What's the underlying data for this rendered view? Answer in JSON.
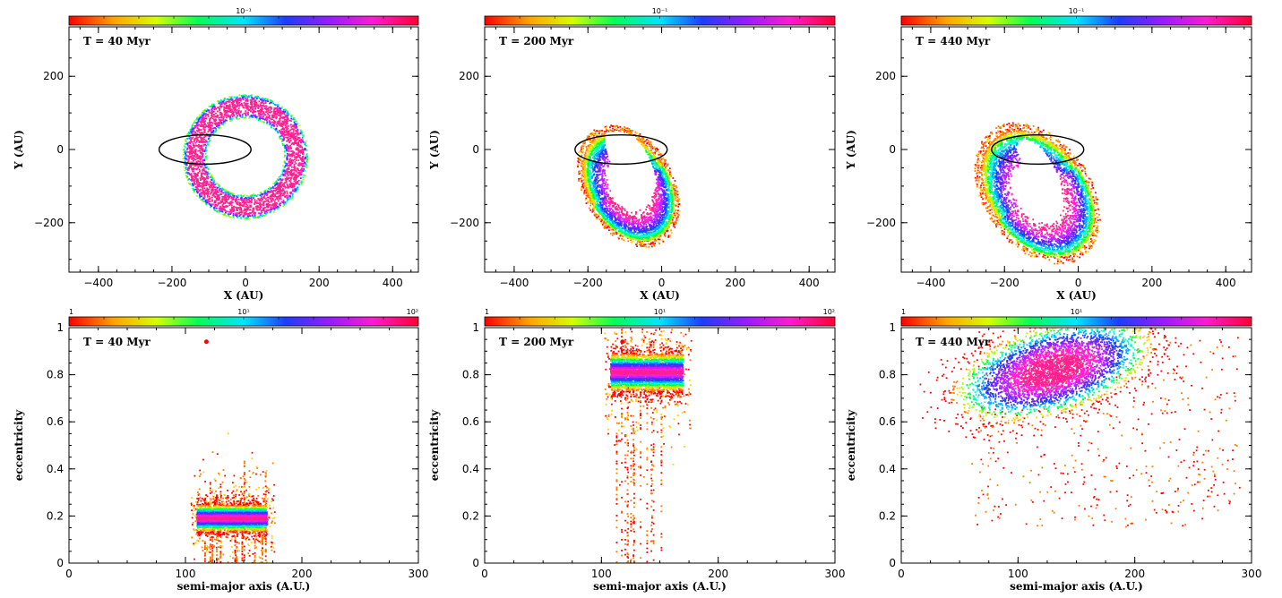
{
  "chart_data": [
    {
      "type": "scatter",
      "panel_label": "T = 40 Myr",
      "xlabel": "X (AU)",
      "ylabel": "Y (AU)",
      "xlim": [
        -480,
        470
      ],
      "ylim": [
        -335,
        335
      ],
      "xticks": [
        -400,
        -200,
        0,
        200,
        400
      ],
      "yticks": [
        -200,
        0,
        200
      ],
      "colorbar": {
        "tick_labels": [
          "10⁻¹"
        ]
      },
      "density": {
        "kind": "ring",
        "center": [
          0,
          -20
        ],
        "outer_radius": 170,
        "inner_radius": 105,
        "peak_color": "#ff33aa"
      },
      "black_ellipse": {
        "center": [
          -110,
          0
        ],
        "rx": 125,
        "ry": 40
      }
    },
    {
      "type": "scatter",
      "panel_label": "T = 200 Myr",
      "xlabel": "X (AU)",
      "ylabel": "Y (AU)",
      "xlim": [
        -480,
        470
      ],
      "ylim": [
        -335,
        335
      ],
      "xticks": [
        -400,
        -200,
        0,
        200,
        400
      ],
      "yticks": [
        -200,
        0,
        200
      ],
      "colorbar": {
        "tick_labels": [
          "10⁻¹"
        ]
      },
      "density": {
        "kind": "tilted-ring",
        "center": [
          -90,
          -100
        ],
        "outer_rx": 110,
        "outer_ry": 160,
        "angle_deg": 30,
        "inner_rx": 50,
        "inner_ry": 110
      },
      "black_ellipse": {
        "center": [
          -110,
          0
        ],
        "rx": 125,
        "ry": 40
      }
    },
    {
      "type": "scatter",
      "panel_label": "T = 440 Myr",
      "xlabel": "X (AU)",
      "ylabel": "Y (AU)",
      "xlim": [
        -480,
        470
      ],
      "ylim": [
        -335,
        335
      ],
      "xticks": [
        -400,
        -200,
        0,
        200,
        400
      ],
      "yticks": [
        -200,
        0,
        200
      ],
      "colorbar": {
        "tick_labels": [
          "10⁻¹"
        ]
      },
      "density": {
        "kind": "tilted-ring",
        "center": [
          -110,
          -120
        ],
        "outer_rx": 130,
        "outer_ry": 190,
        "angle_deg": 35,
        "inner_rx": 35,
        "inner_ry": 80
      },
      "black_ellipse": {
        "center": [
          -110,
          0
        ],
        "rx": 125,
        "ry": 40
      }
    },
    {
      "type": "scatter",
      "panel_label": "T = 40 Myr",
      "xlabel": "semi-major axis (A.U.)",
      "ylabel": "eccentricity",
      "xlim": [
        0,
        300
      ],
      "ylim": [
        0,
        1
      ],
      "xticks": [
        0,
        100,
        200,
        300
      ],
      "yticks": [
        0,
        0.2,
        0.4,
        0.6,
        0.8,
        1
      ],
      "colorbar": {
        "tick_labels": [
          "1",
          "10¹",
          "10²"
        ]
      },
      "density": {
        "kind": "block",
        "x_range": [
          110,
          170
        ],
        "y_range": [
          0.14,
          0.24
        ],
        "peak_y": 0.19
      },
      "marker": {
        "x": 118,
        "y": 0.94
      }
    },
    {
      "type": "scatter",
      "panel_label": "T = 200 Myr",
      "xlabel": "semi-major axis (A.U.)",
      "ylabel": "eccentricity",
      "xlim": [
        0,
        300
      ],
      "ylim": [
        0,
        1
      ],
      "xticks": [
        0,
        100,
        200,
        300
      ],
      "yticks": [
        0,
        0.2,
        0.4,
        0.6,
        0.8,
        1
      ],
      "colorbar": {
        "tick_labels": [
          "1",
          "10¹",
          "10²"
        ]
      },
      "density": {
        "kind": "block",
        "x_range": [
          108,
          170
        ],
        "y_range": [
          0.74,
          0.88
        ],
        "peak_y": 0.81
      },
      "marker": {
        "x": 118,
        "y": 0.94
      }
    },
    {
      "type": "scatter",
      "panel_label": "T = 440 Myr",
      "xlabel": "semi-major axis (A.U.)",
      "ylabel": "eccentricity",
      "xlim": [
        0,
        300
      ],
      "ylim": [
        0,
        1
      ],
      "xticks": [
        0,
        100,
        200,
        300
      ],
      "yticks": [
        0,
        0.2,
        0.4,
        0.6,
        0.8,
        1
      ],
      "colorbar": {
        "tick_labels": [
          "1",
          "10¹"
        ]
      },
      "density": {
        "kind": "blob",
        "center": [
          130,
          0.82
        ],
        "rx": 75,
        "ry": 0.17,
        "angle_deg": -20
      }
    }
  ]
}
